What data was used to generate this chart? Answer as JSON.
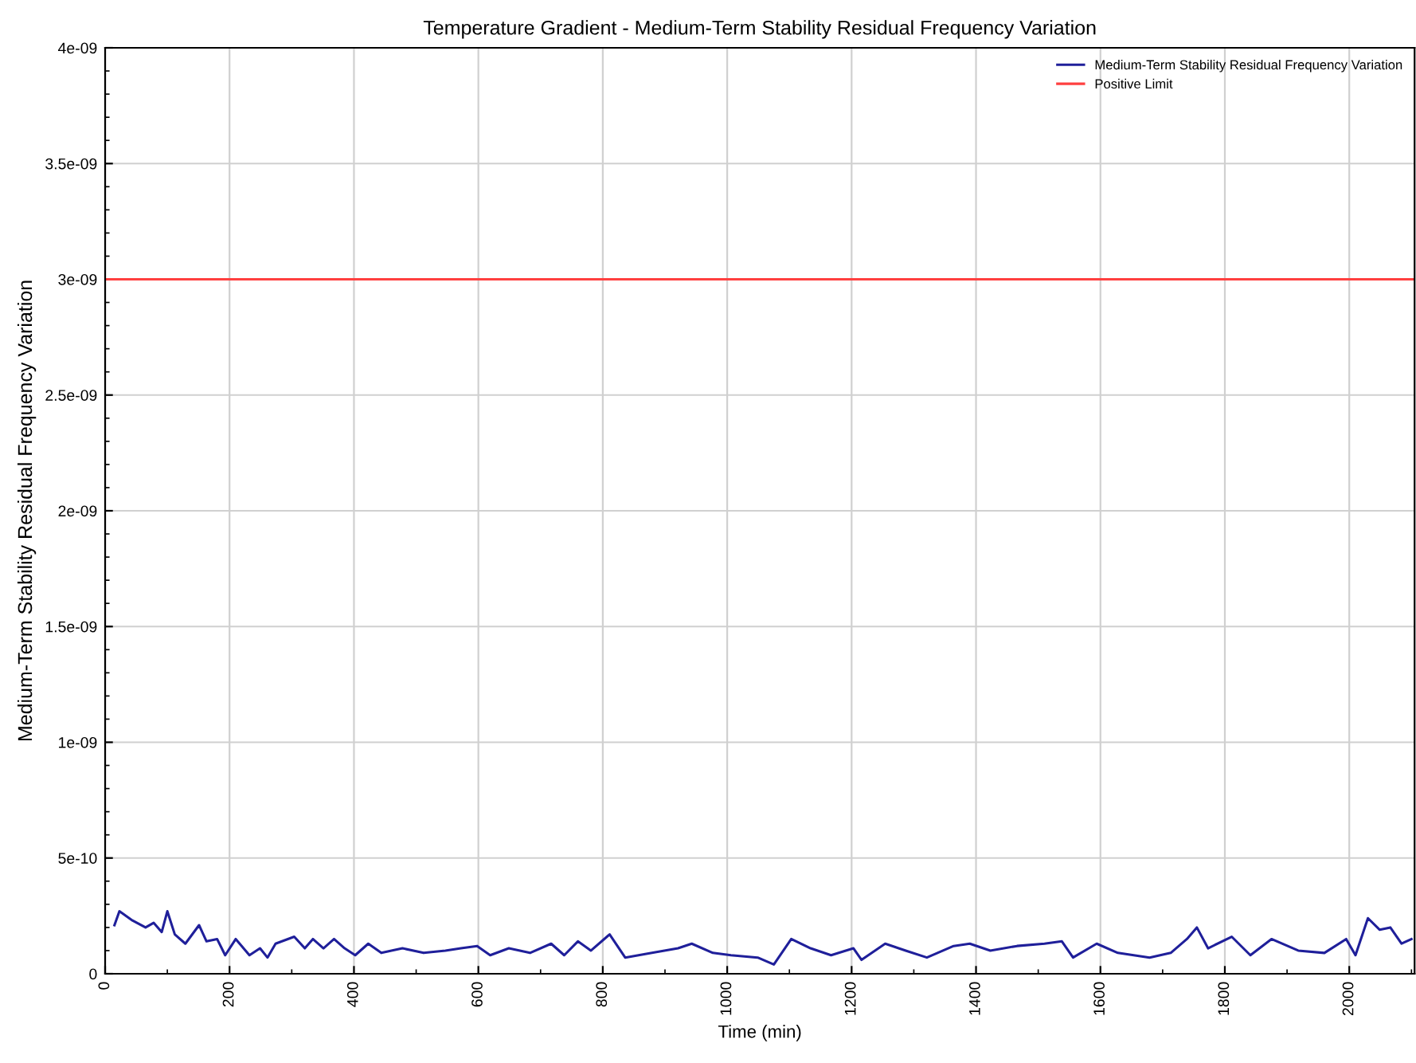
{
  "chart_data": {
    "type": "line",
    "title": "Temperature Gradient - Medium-Term Stability Residual Frequency Variation",
    "xlabel": "Time (min)",
    "ylabel": "Medium-Term Stability Residual Frequency Variation",
    "series": [
      {
        "name": "Medium-Term Stability Residual Frequency Variation",
        "color": "#1f1f9a",
        "x": [
          15,
          23,
          44,
          65,
          78,
          91,
          100,
          112,
          129,
          151,
          163,
          180,
          193,
          210,
          232,
          249,
          261,
          274,
          304,
          321,
          334,
          351,
          368,
          385,
          402,
          423,
          444,
          478,
          512,
          547,
          572,
          598,
          619,
          649,
          683,
          717,
          738,
          760,
          781,
          811,
          836,
          879,
          921,
          943,
          977,
          1006,
          1049,
          1075,
          1103,
          1134,
          1167,
          1203,
          1216,
          1254,
          1287,
          1321,
          1364,
          1390,
          1423,
          1466,
          1510,
          1538,
          1556,
          1594,
          1628,
          1679,
          1713,
          1739,
          1755,
          1773,
          1811,
          1841,
          1875,
          1918,
          1960,
          1995,
          2010,
          2030,
          2049,
          2066,
          2084,
          2100
        ],
        "values": [
          2.1e-10,
          2.7e-10,
          2.3e-10,
          2e-10,
          2.2e-10,
          1.8e-10,
          2.7e-10,
          1.7e-10,
          1.3e-10,
          2.1e-10,
          1.4e-10,
          1.5e-10,
          8e-11,
          1.5e-10,
          8e-11,
          1.1e-10,
          7e-11,
          1.3e-10,
          1.6e-10,
          1.1e-10,
          1.5e-10,
          1.1e-10,
          1.5e-10,
          1.1e-10,
          8e-11,
          1.3e-10,
          9e-11,
          1.1e-10,
          9e-11,
          1e-10,
          1.1e-10,
          1.2e-10,
          8e-11,
          1.1e-10,
          9e-11,
          1.3e-10,
          8e-11,
          1.4e-10,
          1e-10,
          1.7e-10,
          7e-11,
          9e-11,
          1.1e-10,
          1.3e-10,
          9e-11,
          8e-11,
          7e-11,
          4e-11,
          1.5e-10,
          1.1e-10,
          8e-11,
          1.1e-10,
          6e-11,
          1.3e-10,
          1e-10,
          7e-11,
          1.2e-10,
          1.3e-10,
          1e-10,
          1.2e-10,
          1.3e-10,
          1.4e-10,
          7e-11,
          1.3e-10,
          9e-11,
          7e-11,
          9e-11,
          1.5e-10,
          2e-10,
          1.1e-10,
          1.6e-10,
          8e-11,
          1.5e-10,
          1e-10,
          9e-11,
          1.5e-10,
          8e-11,
          2.4e-10,
          1.9e-10,
          2e-10,
          1.3e-10,
          1.5e-10
        ]
      },
      {
        "name": "Positive Limit",
        "color": "#ff4040",
        "x": [
          0,
          2105
        ],
        "values": [
          3e-09,
          3e-09
        ]
      }
    ],
    "xlim": [
      0,
      2105
    ],
    "xticks": [
      0,
      200,
      400,
      600,
      800,
      1000,
      1200,
      1400,
      1600,
      1800,
      2000
    ],
    "ylim": [
      0,
      4e-09
    ],
    "yticks": [
      0,
      {
        "value": 5e-10,
        "label": "5e-10"
      },
      {
        "value": 1e-09,
        "label": "1e-09"
      },
      {
        "value": 1.5e-09,
        "label": "1.5e-09"
      },
      {
        "value": 2e-09,
        "label": "2e-09"
      },
      {
        "value": 2.5e-09,
        "label": "2.5e-09"
      },
      {
        "value": 3e-09,
        "label": "3e-09"
      },
      {
        "value": 3.5e-09,
        "label": "3.5e-09"
      },
      {
        "value": 4e-09,
        "label": "4e-09"
      }
    ],
    "grid": true,
    "legend": "top right",
    "marker": "none",
    "line_style": "solid"
  }
}
